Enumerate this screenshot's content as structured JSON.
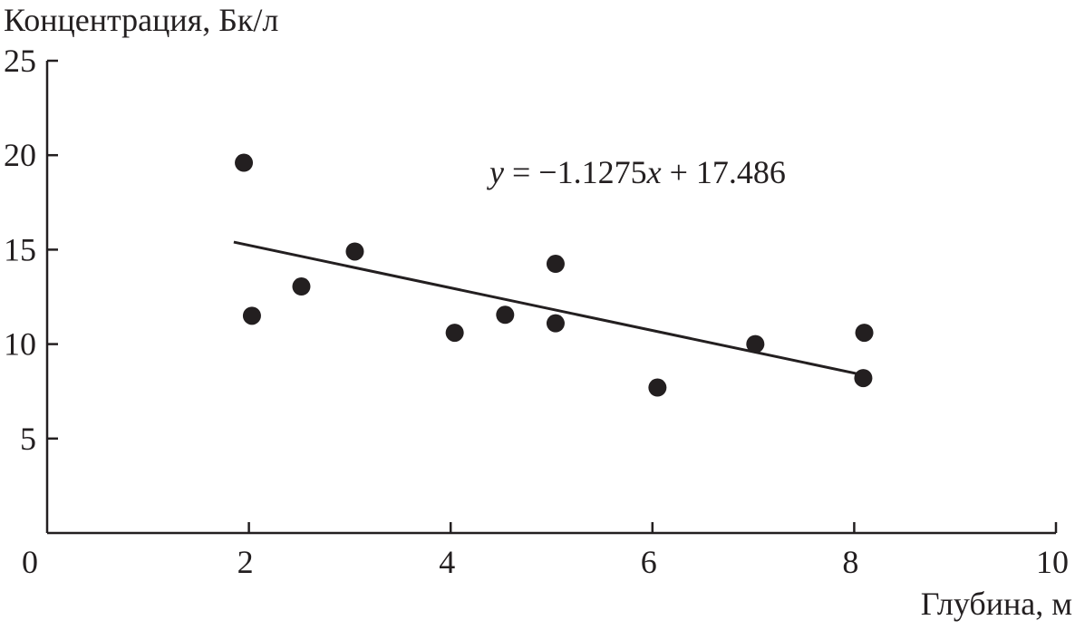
{
  "chart_data": {
    "type": "scatter",
    "ylabel": "Концентрация, Бк/л",
    "xlabel": "Глубина, м",
    "xlim": [
      0,
      10
    ],
    "ylim": [
      0,
      25
    ],
    "xticks": [
      "0",
      "2",
      "4",
      "6",
      "8",
      "10"
    ],
    "yticks": [
      "5",
      "10",
      "15",
      "20",
      "25"
    ],
    "grid": false,
    "points": [
      {
        "x": 1.95,
        "y": 19.6
      },
      {
        "x": 2.03,
        "y": 11.5
      },
      {
        "x": 2.52,
        "y": 13.05
      },
      {
        "x": 3.05,
        "y": 14.9
      },
      {
        "x": 4.04,
        "y": 10.6
      },
      {
        "x": 4.54,
        "y": 11.55
      },
      {
        "x": 5.04,
        "y": 14.25
      },
      {
        "x": 5.04,
        "y": 11.1
      },
      {
        "x": 6.05,
        "y": 7.7
      },
      {
        "x": 7.02,
        "y": 10.0
      },
      {
        "x": 8.1,
        "y": 10.6
      },
      {
        "x": 8.09,
        "y": 8.2
      }
    ],
    "trendline": {
      "slope": -1.1275,
      "intercept": 17.486,
      "x_range": [
        1.85,
        8.1
      ],
      "equation_parts": {
        "y": "y",
        "mid": " = −1.1275",
        "x": "x",
        "tail": " + 17.486"
      }
    },
    "colors": {
      "ink": "#231f20"
    }
  }
}
